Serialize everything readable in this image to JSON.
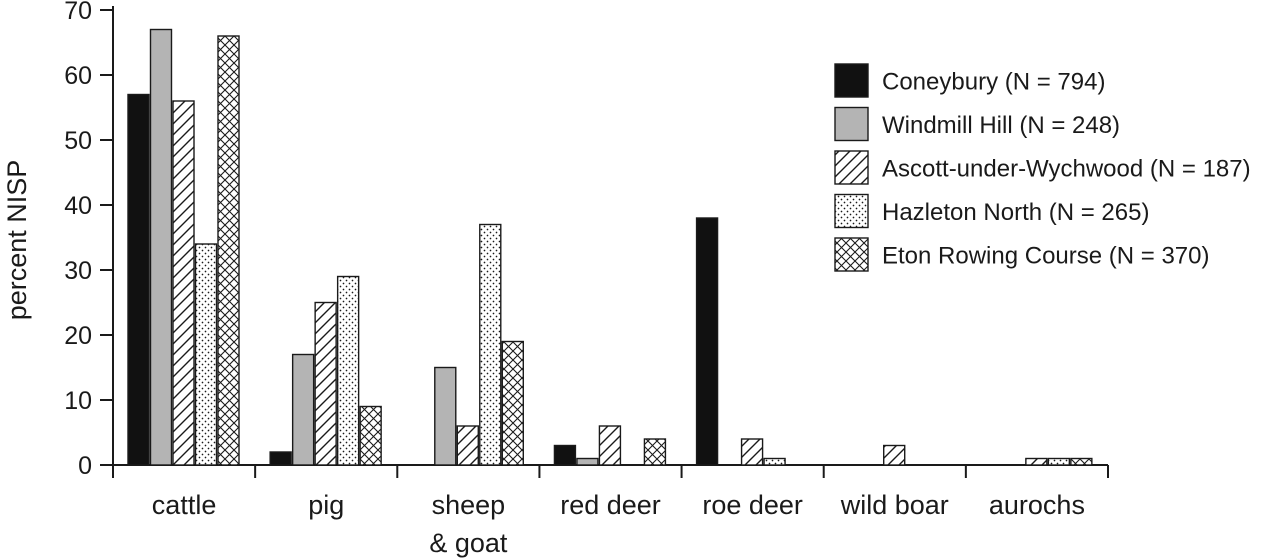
{
  "chart_data": {
    "type": "bar",
    "ylabel": "percent NISP",
    "xlabel": "",
    "ylim": [
      0,
      70
    ],
    "yticks": [
      0,
      10,
      20,
      30,
      40,
      50,
      60,
      70
    ],
    "categories": [
      [
        "cattle"
      ],
      [
        "pig"
      ],
      [
        "sheep",
        "& goat"
      ],
      [
        "red deer"
      ],
      [
        "roe deer"
      ],
      [
        "wild boar"
      ],
      [
        "aurochs"
      ]
    ],
    "series": [
      {
        "name": "Coneybury (N = 794)",
        "pattern": "solid-black",
        "values": [
          57,
          2,
          0,
          3,
          38,
          0,
          0
        ]
      },
      {
        "name": "Windmill Hill (N = 248)",
        "pattern": "solid-grey",
        "values": [
          67,
          17,
          15,
          1,
          0,
          0,
          0
        ]
      },
      {
        "name": "Ascott-under-Wychwood (N = 187)",
        "pattern": "diagonal-hatch",
        "values": [
          56,
          25,
          6,
          6,
          4,
          3,
          1
        ]
      },
      {
        "name": "Hazleton North (N = 265)",
        "pattern": "dotted",
        "values": [
          34,
          29,
          37,
          0,
          1,
          0,
          1
        ]
      },
      {
        "name": "Eton Rowing Course (N = 370)",
        "pattern": "crosshatch",
        "values": [
          66,
          9,
          19,
          4,
          0,
          0,
          1
        ]
      }
    ],
    "legend_position": "top-right",
    "grid": false,
    "colors": {
      "black": "#111111",
      "grey": "#b4b4b4",
      "stroke": "#1a1a1a"
    }
  }
}
